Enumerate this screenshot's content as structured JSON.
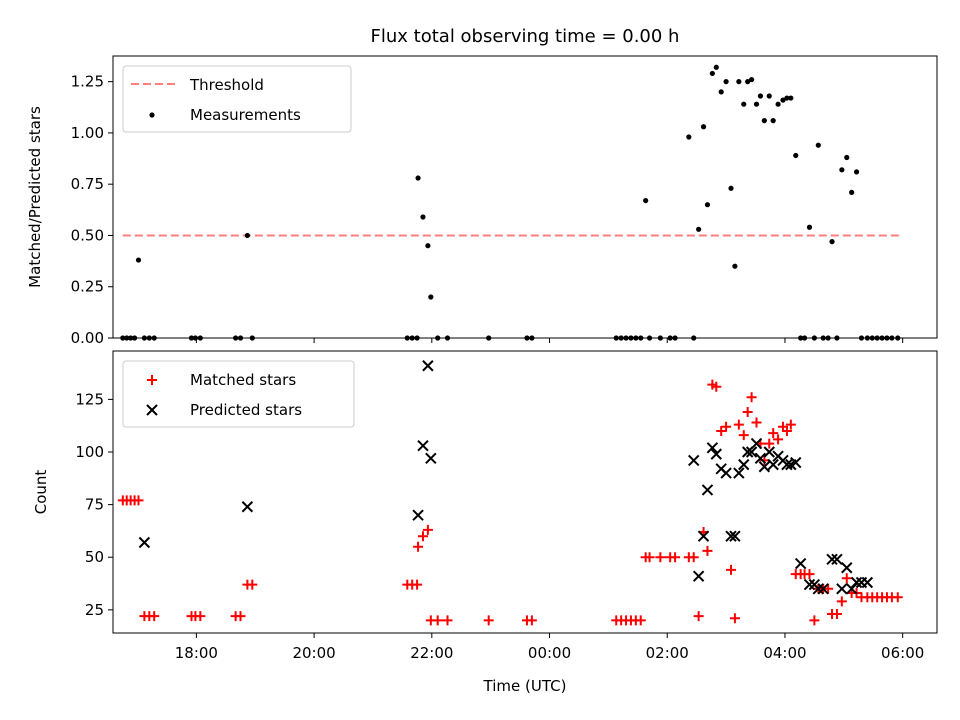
{
  "chart_data": [
    {
      "type": "scatter",
      "title": "Flux total observing time = 0.00 h",
      "ylabel": "Matched/Predicted stars",
      "xlabel": "",
      "xlim": [
        "16:35",
        "06:35"
      ],
      "ylim": [
        0,
        1.375
      ],
      "yticks": [
        0.0,
        0.25,
        0.5,
        0.75,
        1.0,
        1.25
      ],
      "ytick_labels": [
        "0.00",
        "0.25",
        "0.50",
        "0.75",
        "1.00",
        "1.25"
      ],
      "grid": false,
      "legend": "top-left",
      "series": [
        {
          "name": "Threshold",
          "style": "dashed-line",
          "color": "#ff7f7f",
          "x": [
            "16:45",
            "05:58"
          ],
          "y": [
            0.5,
            0.5
          ]
        },
        {
          "name": "Measurements",
          "style": "dot",
          "color": "#000000",
          "x": [
            "16:45",
            "16:49",
            "16:53",
            "16:57",
            "17:01",
            "17:07",
            "17:12",
            "17:17",
            "17:55",
            "17:59",
            "18:04",
            "18:40",
            "18:45",
            "18:52",
            "18:57",
            "21:35",
            "21:40",
            "21:45",
            "21:46",
            "21:51",
            "21:56",
            "21:59",
            "22:06",
            "22:16",
            "22:58",
            "23:37",
            "23:42",
            "01:08",
            "01:13",
            "01:18",
            "01:23",
            "01:28",
            "01:33",
            "01:38",
            "01:42",
            "01:53",
            "02:03",
            "02:08",
            "02:22",
            "02:27",
            "02:32",
            "02:37",
            "02:41",
            "02:46",
            "02:50",
            "02:55",
            "03:00",
            "03:05",
            "03:09",
            "03:13",
            "03:18",
            "03:22",
            "03:26",
            "03:31",
            "03:35",
            "03:39",
            "03:44",
            "03:48",
            "03:53",
            "03:58",
            "04:02",
            "04:06",
            "04:11",
            "04:16",
            "04:20",
            "04:25",
            "04:30",
            "04:34",
            "04:39",
            "04:44",
            "04:48",
            "04:53",
            "04:58",
            "05:03",
            "05:08",
            "05:13",
            "05:18",
            "05:24",
            "05:29",
            "05:34",
            "05:39",
            "05:44",
            "05:49",
            "05:55"
          ],
          "y": [
            0,
            0,
            0,
            0,
            0.38,
            0,
            0,
            0,
            0,
            0,
            0,
            0,
            0,
            0.5,
            0,
            0,
            0,
            0,
            0.78,
            0.59,
            0.45,
            0.2,
            0,
            0,
            0,
            0,
            0,
            0,
            0,
            0,
            0,
            0,
            0,
            0.67,
            0,
            0,
            0,
            0,
            0.98,
            0,
            0.53,
            1.03,
            0.65,
            1.29,
            1.32,
            1.2,
            1.25,
            0.73,
            0.35,
            1.25,
            1.14,
            1.25,
            1.26,
            1.14,
            1.18,
            1.06,
            1.18,
            1.06,
            1.14,
            1.16,
            1.17,
            1.17,
            0.89,
            0,
            0,
            0.54,
            0,
            0.94,
            0,
            0,
            0.47,
            0,
            0.82,
            0.88,
            0.71,
            0.81,
            0,
            0,
            0,
            0,
            0,
            0,
            0,
            0
          ]
        }
      ]
    },
    {
      "type": "scatter",
      "title": "",
      "ylabel": "Count",
      "xlabel": "Time (UTC)",
      "xlim": [
        "16:35",
        "06:35"
      ],
      "ylim": [
        14,
        148
      ],
      "yticks": [
        25,
        50,
        75,
        100,
        125
      ],
      "ytick_labels": [
        "25",
        "50",
        "75",
        "100",
        "125"
      ],
      "xticks": [
        "18:00",
        "20:00",
        "22:00",
        "00:00",
        "02:00",
        "04:00",
        "06:00"
      ],
      "xtick_labels": [
        "18:00",
        "20:00",
        "22:00",
        "00:00",
        "02:00",
        "04:00",
        "06:00"
      ],
      "grid": false,
      "legend": "top-left",
      "series": [
        {
          "name": "Matched stars",
          "style": "plus",
          "color": "#ff0000",
          "x": [
            "16:45",
            "16:49",
            "16:53",
            "16:57",
            "17:01",
            "17:07",
            "17:12",
            "17:17",
            "17:55",
            "17:59",
            "18:04",
            "18:40",
            "18:45",
            "18:52",
            "18:57",
            "21:35",
            "21:40",
            "21:45",
            "21:46",
            "21:51",
            "21:56",
            "21:59",
            "22:06",
            "22:16",
            "22:58",
            "23:37",
            "23:42",
            "01:08",
            "01:13",
            "01:18",
            "01:23",
            "01:28",
            "01:33",
            "01:38",
            "01:42",
            "01:53",
            "02:03",
            "02:08",
            "02:22",
            "02:27",
            "02:32",
            "02:37",
            "02:41",
            "02:46",
            "02:50",
            "02:55",
            "03:00",
            "03:05",
            "03:09",
            "03:13",
            "03:18",
            "03:22",
            "03:26",
            "03:31",
            "03:35",
            "03:39",
            "03:44",
            "03:48",
            "03:53",
            "03:58",
            "04:02",
            "04:06",
            "04:11",
            "04:16",
            "04:20",
            "04:25",
            "04:30",
            "04:34",
            "04:39",
            "04:44",
            "04:48",
            "04:53",
            "04:58",
            "05:03",
            "05:08",
            "05:13",
            "05:18",
            "05:24",
            "05:29",
            "05:34",
            "05:39",
            "05:44",
            "05:49",
            "05:55"
          ],
          "y": [
            77,
            77,
            77,
            77,
            77,
            22,
            22,
            22,
            22,
            22,
            22,
            22,
            22,
            37,
            37,
            37,
            37,
            37,
            55,
            60,
            63,
            20,
            20,
            20,
            20,
            20,
            20,
            20,
            20,
            20,
            20,
            20,
            20,
            50,
            50,
            50,
            50,
            50,
            50,
            50,
            22,
            62,
            53,
            132,
            131,
            110,
            112,
            44,
            21,
            113,
            108,
            119,
            126,
            114,
            104,
            96,
            104,
            109,
            106,
            112,
            110,
            113,
            42,
            42,
            42,
            42,
            20,
            35,
            35,
            35,
            23,
            23,
            29,
            40,
            33,
            33,
            31,
            31,
            31,
            31,
            31,
            31,
            31,
            31
          ]
        },
        {
          "name": "Predicted stars",
          "style": "x",
          "color": "#000000",
          "x": [
            "17:07",
            "18:52",
            "21:46",
            "21:51",
            "21:56",
            "21:59",
            "02:27",
            "02:32",
            "02:37",
            "02:41",
            "02:46",
            "02:50",
            "02:55",
            "03:00",
            "03:05",
            "03:09",
            "03:13",
            "03:18",
            "03:22",
            "03:26",
            "03:31",
            "03:35",
            "03:39",
            "03:44",
            "03:48",
            "03:53",
            "03:58",
            "04:02",
            "04:06",
            "04:11",
            "04:16",
            "04:25",
            "04:30",
            "04:34",
            "04:39",
            "04:48",
            "04:53",
            "04:58",
            "05:03",
            "05:08",
            "05:13",
            "05:18",
            "05:24"
          ],
          "y": [
            57,
            74,
            70,
            103,
            141,
            97,
            96,
            41,
            60,
            82,
            102,
            99,
            92,
            90,
            60,
            60,
            90,
            94,
            100,
            100,
            104,
            97,
            93,
            100,
            94,
            98,
            96,
            94,
            94,
            95,
            47,
            37,
            37,
            35,
            35,
            49,
            49,
            35,
            45,
            35,
            38,
            38,
            38
          ]
        }
      ]
    }
  ]
}
